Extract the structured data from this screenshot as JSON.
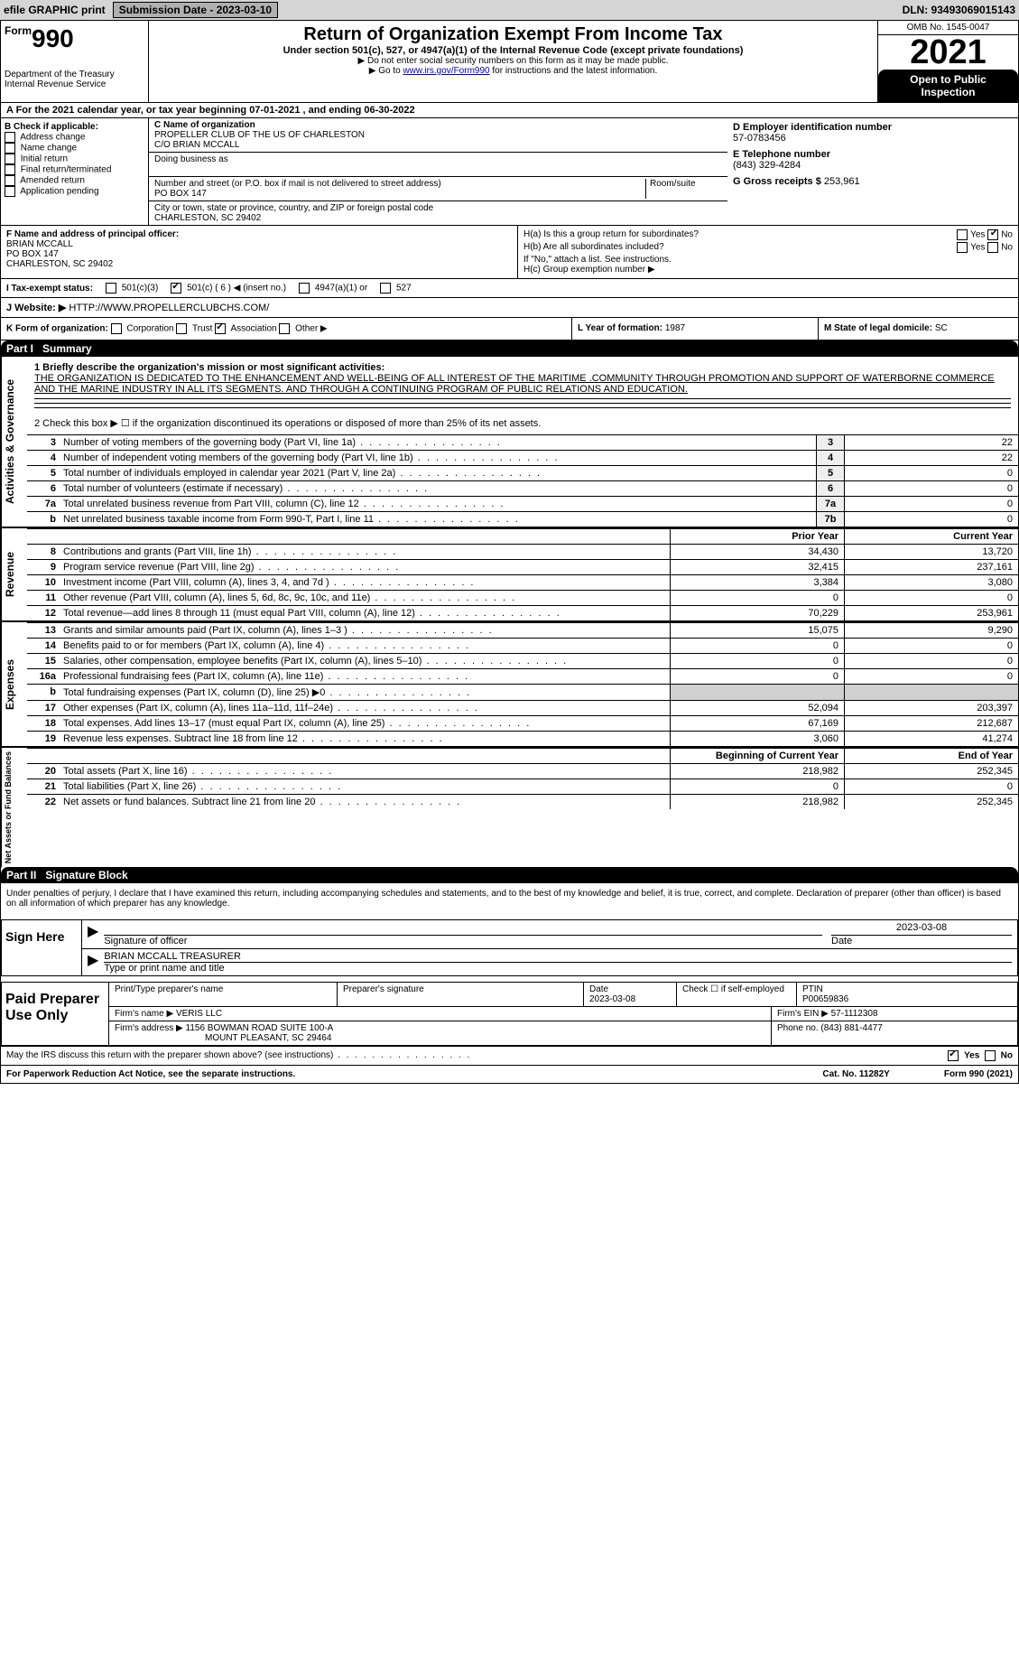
{
  "topbar": {
    "efile": "efile GRAPHIC print",
    "submission_btn": "Submission Date - 2023-03-10",
    "dln": "DLN: 93493069015143"
  },
  "header": {
    "form_no": "990",
    "form_word": "Form",
    "dept": "Department of the Treasury",
    "irs": "Internal Revenue Service",
    "title": "Return of Organization Exempt From Income Tax",
    "subtitle": "Under section 501(c), 527, or 4947(a)(1) of the Internal Revenue Code (except private foundations)",
    "note1": "▶ Do not enter social security numbers on this form as it may be made public.",
    "note2_pre": "▶ Go to ",
    "note2_link": "www.irs.gov/Form990",
    "note2_post": " for instructions and the latest information.",
    "omb": "OMB No. 1545-0047",
    "year": "2021",
    "open_pub": "Open to Public Inspection"
  },
  "row_a": {
    "text": "A For the 2021 calendar year, or tax year beginning 07-01-2021    , and ending 06-30-2022"
  },
  "col_b": {
    "hdr": "B Check if applicable:",
    "items": [
      "Address change",
      "Name change",
      "Initial return",
      "Final return/terminated",
      "Amended return",
      "Application pending"
    ]
  },
  "col_c": {
    "name_lbl": "C Name of organization",
    "name": "PROPELLER CLUB OF THE US OF CHARLESTON",
    "co": "C/O BRIAN MCCALL",
    "dba_lbl": "Doing business as",
    "dba": "",
    "street_lbl": "Number and street (or P.O. box if mail is not delivered to street address)",
    "room_lbl": "Room/suite",
    "street": "PO BOX 147",
    "city_lbl": "City or town, state or province, country, and ZIP or foreign postal code",
    "city": "CHARLESTON, SC  29402"
  },
  "col_d": {
    "ein_lbl": "D Employer identification number",
    "ein": "57-0783456",
    "tel_lbl": "E Telephone number",
    "tel": "(843) 329-4284",
    "gross_lbl": "G Gross receipts $",
    "gross": "253,961"
  },
  "principal": {
    "lbl": "F  Name and address of principal officer:",
    "name": "BRIAN MCCALL",
    "addr1": "PO BOX 147",
    "addr2": "CHARLESTON, SC  29402"
  },
  "hblock": {
    "ha": "H(a)  Is this a group return for subordinates?",
    "ha_yes": "Yes",
    "ha_no": "No",
    "hb": "H(b)  Are all subordinates included?",
    "hb_yes": "Yes",
    "hb_no": "No",
    "hb_note": "If \"No,\" attach a list. See instructions.",
    "hc": "H(c)  Group exemption number ▶"
  },
  "tax_status": {
    "lbl": "I   Tax-exempt status:",
    "c3": "501(c)(3)",
    "cx": "501(c) ( 6 ) ◀ (insert no.)",
    "a1": "4947(a)(1) or",
    "s527": "527"
  },
  "website": {
    "lbl": "J   Website: ▶",
    "val": "HTTP://WWW.PROPELLERCLUBCHS.COM/"
  },
  "k_row": {
    "lbl": "K Form of organization:",
    "corp": "Corporation",
    "trust": "Trust",
    "assoc": "Association",
    "other": "Other ▶",
    "l_lbl": "L Year of formation:",
    "l_val": "1987",
    "m_lbl": "M State of legal domicile:",
    "m_val": "SC"
  },
  "part1": {
    "num": "Part I",
    "title": "Summary",
    "q1_lbl": "1  Briefly describe the organization's mission or most significant activities:",
    "q1_val": "THE ORGANIZATION IS DEDICATED TO THE ENHANCEMENT AND WELL-BEING OF ALL INTEREST OF THE MARITIME .COMMUNITY THROUGH PROMOTION AND SUPPORT OF WATERBORNE COMMERCE AND THE MARINE INDUSTRY IN ALL ITS SEGMENTS. AND THROUGH A CONTINUING PROGRAM OF PUBLIC RELATIONS AND EDUCATION.",
    "q2": "2   Check this box ▶ ☐  if the organization discontinued its operations or disposed of more than 25% of its net assets.",
    "rows_single": [
      {
        "n": "3",
        "t": "Number of voting members of the governing body (Part VI, line 1a)",
        "box": "3",
        "v": "22"
      },
      {
        "n": "4",
        "t": "Number of independent voting members of the governing body (Part VI, line 1b)",
        "box": "4",
        "v": "22"
      },
      {
        "n": "5",
        "t": "Total number of individuals employed in calendar year 2021 (Part V, line 2a)",
        "box": "5",
        "v": "0"
      },
      {
        "n": "6",
        "t": "Total number of volunteers (estimate if necessary)",
        "box": "6",
        "v": "0"
      },
      {
        "n": "7a",
        "t": "Total unrelated business revenue from Part VIII, column (C), line 12",
        "box": "7a",
        "v": "0"
      },
      {
        "n": "b",
        "t": "Net unrelated business taxable income from Form 990-T, Part I, line 11",
        "box": "7b",
        "v": "0"
      }
    ],
    "col_hdr": {
      "prior": "Prior Year",
      "current": "Current Year"
    },
    "revenue_rows": [
      {
        "n": "8",
        "t": "Contributions and grants (Part VIII, line 1h)",
        "p": "34,430",
        "c": "13,720"
      },
      {
        "n": "9",
        "t": "Program service revenue (Part VIII, line 2g)",
        "p": "32,415",
        "c": "237,161"
      },
      {
        "n": "10",
        "t": "Investment income (Part VIII, column (A), lines 3, 4, and 7d )",
        "p": "3,384",
        "c": "3,080"
      },
      {
        "n": "11",
        "t": "Other revenue (Part VIII, column (A), lines 5, 6d, 8c, 9c, 10c, and 11e)",
        "p": "0",
        "c": "0"
      },
      {
        "n": "12",
        "t": "Total revenue—add lines 8 through 11 (must equal Part VIII, column (A), line 12)",
        "p": "70,229",
        "c": "253,961"
      }
    ],
    "expense_rows": [
      {
        "n": "13",
        "t": "Grants and similar amounts paid (Part IX, column (A), lines 1–3 )",
        "p": "15,075",
        "c": "9,290"
      },
      {
        "n": "14",
        "t": "Benefits paid to or for members (Part IX, column (A), line 4)",
        "p": "0",
        "c": "0"
      },
      {
        "n": "15",
        "t": "Salaries, other compensation, employee benefits (Part IX, column (A), lines 5–10)",
        "p": "0",
        "c": "0"
      },
      {
        "n": "16a",
        "t": "Professional fundraising fees (Part IX, column (A), line 11e)",
        "p": "0",
        "c": "0"
      },
      {
        "n": "b",
        "t": "Total fundraising expenses (Part IX, column (D), line 25) ▶0",
        "p": "",
        "c": "",
        "shade": true
      },
      {
        "n": "17",
        "t": "Other expenses (Part IX, column (A), lines 11a–11d, 11f–24e)",
        "p": "52,094",
        "c": "203,397"
      },
      {
        "n": "18",
        "t": "Total expenses. Add lines 13–17 (must equal Part IX, column (A), line 25)",
        "p": "67,169",
        "c": "212,687"
      },
      {
        "n": "19",
        "t": "Revenue less expenses. Subtract line 18 from line 12",
        "p": "3,060",
        "c": "41,274"
      }
    ],
    "net_hdr": {
      "beg": "Beginning of Current Year",
      "end": "End of Year"
    },
    "net_rows": [
      {
        "n": "20",
        "t": "Total assets (Part X, line 16)",
        "p": "218,982",
        "c": "252,345"
      },
      {
        "n": "21",
        "t": "Total liabilities (Part X, line 26)",
        "p": "0",
        "c": "0"
      },
      {
        "n": "22",
        "t": "Net assets or fund balances. Subtract line 21 from line 20",
        "p": "218,982",
        "c": "252,345"
      }
    ],
    "side_labels": {
      "act": "Activities & Governance",
      "rev": "Revenue",
      "exp": "Expenses",
      "net": "Net Assets or Fund Balances"
    }
  },
  "part2": {
    "num": "Part II",
    "title": "Signature Block",
    "decl": "Under penalties of perjury, I declare that I have examined this return, including accompanying schedules and statements, and to the best of my knowledge and belief, it is true, correct, and complete. Declaration of preparer (other than officer) is based on all information of which preparer has any knowledge.",
    "sign_here": "Sign Here",
    "sig_officer": "Signature of officer",
    "sig_date": "Date",
    "sig_date_val": "2023-03-08",
    "officer_name": "BRIAN MCCALL TREASURER",
    "type_name": "Type or print name and title",
    "paid": "Paid Preparer Use Only",
    "prep_name_lbl": "Print/Type preparer's name",
    "prep_sig_lbl": "Preparer's signature",
    "prep_date_lbl": "Date",
    "prep_date": "2023-03-08",
    "check_self": "Check ☐ if self-employed",
    "ptin_lbl": "PTIN",
    "ptin": "P00659836",
    "firm_name_lbl": "Firm's name    ▶",
    "firm_name": "VERIS LLC",
    "firm_ein_lbl": "Firm's EIN ▶",
    "firm_ein": "57-1112308",
    "firm_addr_lbl": "Firm's address ▶",
    "firm_addr1": "1156 BOWMAN ROAD SUITE 100-A",
    "firm_addr2": "MOUNT PLEASANT, SC  29464",
    "phone_lbl": "Phone no.",
    "phone": "(843) 881-4477",
    "discuss": "May the IRS discuss this return with the preparer shown above? (see instructions)",
    "yes": "Yes",
    "no": "No"
  },
  "footer": {
    "pra": "For Paperwork Reduction Act Notice, see the separate instructions.",
    "cat": "Cat. No. 11282Y",
    "form": "Form 990 (2021)"
  },
  "colors": {
    "topbar_bg": "#d5d5d5",
    "black": "#000000",
    "shade": "#d0d0d0",
    "link": "#0000cc"
  }
}
